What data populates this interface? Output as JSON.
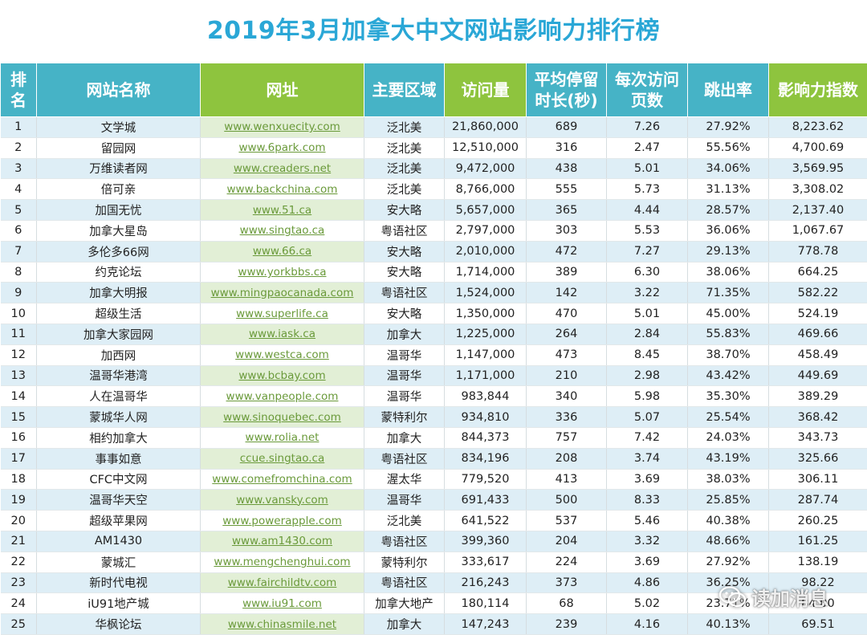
{
  "title": "2019年3月加拿大中文网站影响力排行榜",
  "headers": {
    "rank": "排名",
    "name": "网站名称",
    "url": "网址",
    "region": "主要区域",
    "visits": "访问量",
    "avg_time": "平均停留时长(秒)",
    "pages_per_visit": "每次访问页数",
    "bounce_rate": "跳出率",
    "influence_index": "影响力指数"
  },
  "rows": [
    {
      "rank": "1",
      "name": "文学城",
      "url": "www.wenxuecity.com",
      "region": "泛北美",
      "visits": "21,860,000",
      "avg_time": "689",
      "pages": "7.26",
      "bounce": "27.92%",
      "index": "8,223.62"
    },
    {
      "rank": "2",
      "name": "留园网",
      "url": "www.6park.com",
      "region": "泛北美",
      "visits": "12,510,000",
      "avg_time": "316",
      "pages": "2.47",
      "bounce": "55.56%",
      "index": "4,700.69"
    },
    {
      "rank": "3",
      "name": "万维读者网",
      "url": "www.creaders.net",
      "region": "泛北美",
      "visits": "9,472,000",
      "avg_time": "438",
      "pages": "5.01",
      "bounce": "34.06%",
      "index": "3,569.95"
    },
    {
      "rank": "4",
      "name": "倍可亲",
      "url": "www.backchina.com",
      "region": "泛北美",
      "visits": "8,766,000",
      "avg_time": "555",
      "pages": "5.73",
      "bounce": "31.13%",
      "index": "3,308.02"
    },
    {
      "rank": "5",
      "name": "加国无忧",
      "url": "www.51.ca",
      "region": "安大略",
      "visits": "5,657,000",
      "avg_time": "365",
      "pages": "4.44",
      "bounce": "28.57%",
      "index": "2,137.40"
    },
    {
      "rank": "6",
      "name": "加拿大星岛",
      "url": "www.singtao.ca",
      "region": "粤语社区",
      "visits": "2,797,000",
      "avg_time": "303",
      "pages": "5.53",
      "bounce": "36.06%",
      "index": "1,067.67"
    },
    {
      "rank": "7",
      "name": "多伦多66网",
      "url": "www.66.ca",
      "region": "安大略",
      "visits": "2,010,000",
      "avg_time": "472",
      "pages": "7.27",
      "bounce": "29.13%",
      "index": "778.78"
    },
    {
      "rank": "8",
      "name": "约克论坛",
      "url": "www.yorkbbs.ca",
      "region": "安大略",
      "visits": "1,714,000",
      "avg_time": "389",
      "pages": "6.30",
      "bounce": "38.06%",
      "index": "664.25"
    },
    {
      "rank": "9",
      "name": "加拿大明报",
      "url": "www.mingpaocanada.com",
      "region": "粤语社区",
      "visits": "1,524,000",
      "avg_time": "142",
      "pages": "3.22",
      "bounce": "71.35%",
      "index": "582.22"
    },
    {
      "rank": "10",
      "name": "超级生活",
      "url": "www.superlife.ca",
      "region": "安大略",
      "visits": "1,350,000",
      "avg_time": "470",
      "pages": "5.01",
      "bounce": "45.00%",
      "index": "524.19"
    },
    {
      "rank": "11",
      "name": "加拿大家园网",
      "url": "www.iask.ca",
      "region": "加拿大",
      "visits": "1,225,000",
      "avg_time": "264",
      "pages": "2.84",
      "bounce": "55.83%",
      "index": "469.66"
    },
    {
      "rank": "12",
      "name": "加西网",
      "url": "www.westca.com",
      "region": "温哥华",
      "visits": "1,147,000",
      "avg_time": "473",
      "pages": "8.45",
      "bounce": "38.70%",
      "index": "458.49"
    },
    {
      "rank": "13",
      "name": "温哥华港湾",
      "url": "www.bcbay.com",
      "region": "温哥华",
      "visits": "1,171,000",
      "avg_time": "210",
      "pages": "2.98",
      "bounce": "43.42%",
      "index": "449.69"
    },
    {
      "rank": "14",
      "name": "人在温哥华",
      "url": "www.vanpeople.com",
      "region": "温哥华",
      "visits": "983,844",
      "avg_time": "340",
      "pages": "5.98",
      "bounce": "35.30%",
      "index": "389.29"
    },
    {
      "rank": "15",
      "name": "蒙城华人网",
      "url": "www.sinoquebec.com",
      "region": "蒙特利尔",
      "visits": "934,810",
      "avg_time": "336",
      "pages": "5.07",
      "bounce": "25.54%",
      "index": "368.42"
    },
    {
      "rank": "16",
      "name": "相约加拿大",
      "url": "www.rolia.net",
      "region": "加拿大",
      "visits": "844,373",
      "avg_time": "757",
      "pages": "7.42",
      "bounce": "24.03%",
      "index": "343.73"
    },
    {
      "rank": "17",
      "name": "事事如意",
      "url": "ccue.singtao.ca",
      "region": "粤语社区",
      "visits": "834,196",
      "avg_time": "208",
      "pages": "3.74",
      "bounce": "43.19%",
      "index": "325.66"
    },
    {
      "rank": "18",
      "name": "CFC中文网",
      "url": "www.comefromchina.com",
      "region": "渥太华",
      "visits": "779,520",
      "avg_time": "413",
      "pages": "3.69",
      "bounce": "38.03%",
      "index": "306.11"
    },
    {
      "rank": "19",
      "name": "温哥华天空",
      "url": "www.vansky.com",
      "region": "温哥华",
      "visits": "691,433",
      "avg_time": "500",
      "pages": "8.33",
      "bounce": "25.85%",
      "index": "287.74"
    },
    {
      "rank": "20",
      "name": "超级苹果网",
      "url": "www.powerapple.com",
      "region": "泛北美",
      "visits": "641,522",
      "avg_time": "537",
      "pages": "5.46",
      "bounce": "40.38%",
      "index": "260.25"
    },
    {
      "rank": "21",
      "name": "AM1430",
      "url": "www.am1430.com",
      "region": "粤语社区",
      "visits": "399,360",
      "avg_time": "204",
      "pages": "3.32",
      "bounce": "48.66%",
      "index": "161.25"
    },
    {
      "rank": "22",
      "name": "蒙城汇",
      "url": "www.mengchenghui.com",
      "region": "蒙特利尔",
      "visits": "333,617",
      "avg_time": "224",
      "pages": "3.69",
      "bounce": "27.92%",
      "index": "138.19"
    },
    {
      "rank": "23",
      "name": "新时代电视",
      "url": "www.fairchildtv.com",
      "region": "粤语社区",
      "visits": "216,243",
      "avg_time": "373",
      "pages": "4.86",
      "bounce": "36.25%",
      "index": "98.22"
    },
    {
      "rank": "24",
      "name": "iU91地产城",
      "url": "www.iu91.com",
      "region": "加拿大地产",
      "visits": "180,114",
      "avg_time": "68",
      "pages": "5.02",
      "bounce": "23.71%",
      "index": "84.00"
    },
    {
      "rank": "25",
      "name": "华枫论坛",
      "url": "www.chinasmile.net",
      "region": "加拿大",
      "visits": "147,243",
      "avg_time": "239",
      "pages": "4.16",
      "bounce": "40.13%",
      "index": "69.51"
    }
  ],
  "watermark": {
    "text": "读加消息",
    "icon": "wechat-icon"
  },
  "colors": {
    "title": "#2aa7d6",
    "header_teal": "#46b3c6",
    "header_green": "#8ec43e",
    "row_alt": "#deeef6",
    "url_text": "#6a9a3a"
  }
}
